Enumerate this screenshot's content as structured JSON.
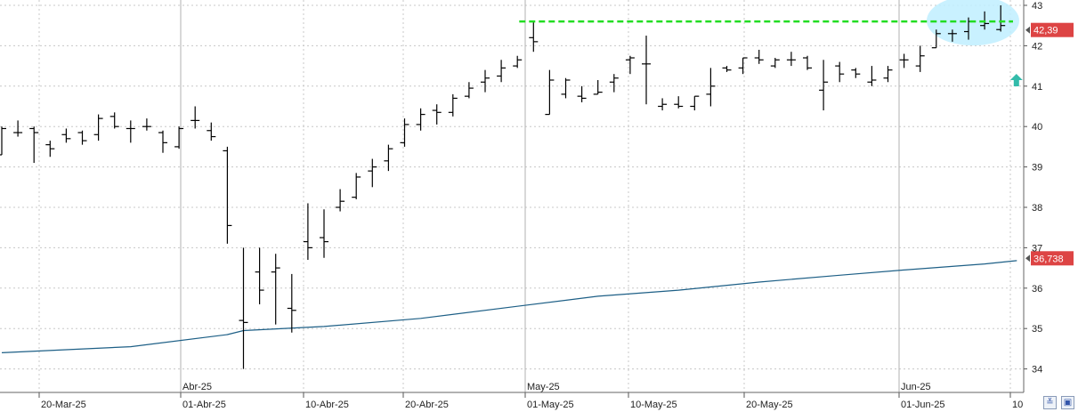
{
  "chart_data": {
    "type": "ohlc",
    "ylim": [
      33.4,
      43.15
    ],
    "y_ticks": [
      "34",
      "35",
      "36",
      "37",
      "38",
      "39",
      "40",
      "41",
      "42",
      "43"
    ],
    "grid": true,
    "month_labels": [
      "Abr-25",
      "May-25",
      "Jun-25"
    ],
    "date_labels": [
      "20-Mar-25",
      "01-Abr-25",
      "10-Abr-25",
      "20-Abr-25",
      "01-May-25",
      "10-May-25",
      "20-May-25",
      "01-Jun-25",
      "10"
    ],
    "bars": [
      [
        39.3,
        40.0,
        39.3,
        39.95
      ],
      [
        39.85,
        40.15,
        39.75,
        39.85
      ],
      [
        39.95,
        40.0,
        39.1,
        39.85
      ],
      [
        39.55,
        39.65,
        39.25,
        39.45
      ],
      [
        39.8,
        39.95,
        39.6,
        39.7
      ],
      [
        39.85,
        39.9,
        39.55,
        39.65
      ],
      [
        39.8,
        40.3,
        39.65,
        40.2
      ],
      [
        40.25,
        40.35,
        39.95,
        40.0
      ],
      [
        39.95,
        40.15,
        39.6,
        39.95
      ],
      [
        40.0,
        40.2,
        39.9,
        40.0
      ],
      [
        39.85,
        39.9,
        39.35,
        39.6
      ],
      [
        39.5,
        40.0,
        39.45,
        39.95
      ],
      [
        40.15,
        40.5,
        39.95,
        40.15
      ],
      [
        39.9,
        40.1,
        39.65,
        39.75
      ],
      [
        39.4,
        39.5,
        37.1,
        37.55
      ],
      [
        35.2,
        37.0,
        34.0,
        35.15
      ],
      [
        36.4,
        37.0,
        35.6,
        35.95
      ],
      [
        36.4,
        36.85,
        35.1,
        36.5
      ],
      [
        35.5,
        36.35,
        34.9,
        35.45
      ],
      [
        37.15,
        38.1,
        36.7,
        37.0
      ],
      [
        37.25,
        37.95,
        36.75,
        37.15
      ],
      [
        38.0,
        38.45,
        37.9,
        38.15
      ],
      [
        38.25,
        38.85,
        38.2,
        38.75
      ],
      [
        38.9,
        39.2,
        38.5,
        39.0
      ],
      [
        39.15,
        39.55,
        38.9,
        39.45
      ],
      [
        39.6,
        40.2,
        39.5,
        40.05
      ],
      [
        40.05,
        40.45,
        39.9,
        40.3
      ],
      [
        40.4,
        40.55,
        40.05,
        40.35
      ],
      [
        40.35,
        40.8,
        40.25,
        40.7
      ],
      [
        40.75,
        41.1,
        40.7,
        40.95
      ],
      [
        41.1,
        41.4,
        40.85,
        41.2
      ],
      [
        41.25,
        41.65,
        41.1,
        41.45
      ],
      [
        41.5,
        41.75,
        41.45,
        41.65
      ],
      [
        42.2,
        42.6,
        41.85,
        42.1
      ],
      [
        40.3,
        41.4,
        40.3,
        41.15
      ],
      [
        40.8,
        41.2,
        40.7,
        41.15
      ],
      [
        40.75,
        41.0,
        40.6,
        40.7
      ],
      [
        40.8,
        41.15,
        40.8,
        40.85
      ],
      [
        41.1,
        41.3,
        40.85,
        41.2
      ],
      [
        41.65,
        41.75,
        41.3,
        41.7
      ],
      [
        41.55,
        42.25,
        40.55,
        41.55
      ],
      [
        40.5,
        40.7,
        40.4,
        40.55
      ],
      [
        40.55,
        40.75,
        40.45,
        40.5
      ],
      [
        40.5,
        40.75,
        40.4,
        40.75
      ],
      [
        40.8,
        41.45,
        40.5,
        41.0
      ],
      [
        41.45,
        41.5,
        41.35,
        41.4
      ],
      [
        41.45,
        41.7,
        41.3,
        41.7
      ],
      [
        41.7,
        41.9,
        41.55,
        41.65
      ],
      [
        41.5,
        41.7,
        41.45,
        41.65
      ],
      [
        41.65,
        41.85,
        41.5,
        41.65
      ],
      [
        41.7,
        41.75,
        41.4,
        41.45
      ],
      [
        40.9,
        41.65,
        40.4,
        41.1
      ],
      [
        41.5,
        41.6,
        41.1,
        41.3
      ],
      [
        41.4,
        41.45,
        41.2,
        41.3
      ],
      [
        41.1,
        41.5,
        41.0,
        41.15
      ],
      [
        41.2,
        41.5,
        41.1,
        41.4
      ],
      [
        41.65,
        41.8,
        41.45,
        41.65
      ],
      [
        41.5,
        42.0,
        41.35,
        41.75
      ],
      [
        41.95,
        42.4,
        41.95,
        42.3
      ],
      [
        42.3,
        42.4,
        42.1,
        42.3
      ],
      [
        42.35,
        42.7,
        42.15,
        42.6
      ],
      [
        42.5,
        42.85,
        42.4,
        42.55
      ],
      [
        42.4,
        43.0,
        42.35,
        42.5
      ]
    ],
    "ma_series": {
      "name": "",
      "x": [
        0,
        8,
        14,
        15,
        20,
        26,
        32,
        37,
        42,
        47,
        52,
        56,
        61,
        63
      ],
      "values": [
        34.4,
        34.55,
        34.85,
        34.95,
        35.05,
        35.25,
        35.55,
        35.8,
        35.95,
        36.15,
        36.32,
        36.45,
        36.6,
        36.68
      ]
    },
    "resistance": {
      "value": 42.6,
      "from_bar": 33,
      "color": "#22dd22"
    },
    "highlight": {
      "center_bar": 60,
      "value": 42.6,
      "color": "#bfefff"
    },
    "arrow_up": {
      "bar": 63,
      "value": 41.15,
      "color": "#33bbaa"
    },
    "price_badges": [
      {
        "label": "42,39",
        "value": 42.39,
        "color": "#dd4444"
      },
      {
        "label": "36,738",
        "value": 36.738,
        "color": "#dd4444"
      }
    ],
    "corner_buttons": {
      "zoom_icon": "zoom-icon",
      "save_icon": "save-icon"
    }
  }
}
